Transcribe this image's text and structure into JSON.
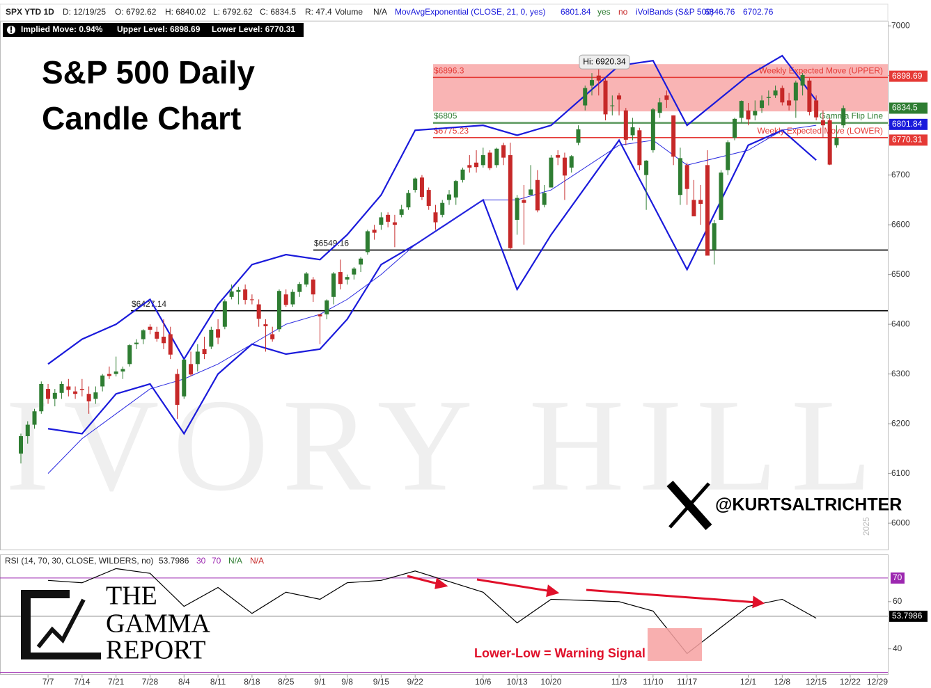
{
  "header": {
    "symbol": "SPX YTD 1D",
    "date": "D: 12/19/25",
    "open": "O: 6792.62",
    "high": "H: 6840.02",
    "low": "L: 6792.62",
    "close": "C: 6834.5",
    "range": "R: 47.4",
    "volume": "Volume",
    "volume_value": "N/A",
    "ema_study": "MovAvgExponential (CLOSE, 21, 0, yes)",
    "ema_value": "6801.84",
    "ema_yes": "yes",
    "ema_no": "no",
    "bands_study": "iVolBands (S&P 500)",
    "bands_upper": "6846.76",
    "bands_lower": "6702.76"
  },
  "implied_bar": {
    "implied": "Implied Move: 0.94%",
    "upper": "Upper Level: 6898.69",
    "lower": "Lower Level: 6770.31"
  },
  "chart_data": [
    {
      "type": "candlestick",
      "title_lines": [
        "S&P 500 Daily",
        "Candle Chart"
      ],
      "watermark": "IVORY HILL",
      "handle": "@KURTSALTRICHTER",
      "year_label": "2025",
      "categories": [
        null,
        null,
        null,
        null,
        "7/7",
        null,
        null,
        null,
        null,
        "7/14",
        null,
        null,
        null,
        null,
        "7/21",
        null,
        null,
        null,
        null,
        "7/28",
        null,
        null,
        null,
        null,
        "8/4",
        null,
        null,
        null,
        null,
        "8/11",
        null,
        null,
        null,
        null,
        "8/18",
        null,
        null,
        null,
        null,
        "8/25",
        null,
        null,
        null,
        null,
        "9/1",
        null,
        null,
        null,
        "9/8",
        null,
        null,
        null,
        null,
        "9/15",
        null,
        null,
        null,
        null,
        "9/22",
        null,
        null,
        null,
        null,
        null,
        null,
        null,
        null,
        null,
        "10/6",
        null,
        null,
        null,
        null,
        "10/13",
        null,
        null,
        null,
        null,
        "10/20",
        null,
        null,
        null,
        null,
        null,
        null,
        null,
        null,
        null,
        "11/3",
        null,
        null,
        null,
        null,
        "11/10",
        null,
        null,
        null,
        null,
        "11/17",
        null,
        null,
        null,
        null,
        null,
        null,
        null,
        null,
        "12/1",
        null,
        null,
        null,
        null,
        "12/8",
        null,
        null,
        null,
        null,
        "12/15",
        null,
        null,
        null,
        null,
        "12/22",
        null,
        null,
        null,
        "12/29"
      ],
      "ohlc": [
        [
          6140,
          6180,
          6120,
          6175
        ],
        [
          6175,
          6205,
          6160,
          6198
        ],
        [
          6198,
          6230,
          6190,
          6225
        ],
        [
          6225,
          6285,
          6220,
          6280
        ],
        [
          6270,
          6280,
          6240,
          6250
        ],
        [
          6250,
          6270,
          6235,
          6262
        ],
        [
          6262,
          6285,
          6250,
          6280
        ],
        [
          6275,
          6290,
          6255,
          6268
        ],
        [
          6265,
          6275,
          6250,
          6260
        ],
        [
          6270,
          6290,
          6255,
          6268
        ],
        [
          6260,
          6275,
          6220,
          6245
        ],
        [
          6250,
          6275,
          6240,
          6263
        ],
        [
          6275,
          6300,
          6265,
          6297
        ],
        [
          6300,
          6315,
          6290,
          6296
        ],
        [
          6300,
          6335,
          6295,
          6305
        ],
        [
          6305,
          6315,
          6290,
          6310
        ],
        [
          6320,
          6360,
          6315,
          6358
        ],
        [
          6360,
          6370,
          6350,
          6363
        ],
        [
          6370,
          6390,
          6360,
          6388
        ],
        [
          6395,
          6400,
          6380,
          6389
        ],
        [
          6385,
          6395,
          6365,
          6371
        ],
        [
          6375,
          6410,
          6350,
          6362
        ],
        [
          6380,
          6395,
          6330,
          6339
        ],
        [
          6300,
          6310,
          6210,
          6238
        ],
        [
          6255,
          6330,
          6250,
          6329
        ],
        [
          6320,
          6345,
          6295,
          6299
        ],
        [
          6320,
          6360,
          6305,
          6345
        ],
        [
          6350,
          6375,
          6330,
          6340
        ],
        [
          6355,
          6395,
          6350,
          6389
        ],
        [
          6390,
          6410,
          6360,
          6373
        ],
        [
          6395,
          6450,
          6390,
          6446
        ],
        [
          6455,
          6480,
          6450,
          6466
        ],
        [
          6465,
          6475,
          6440,
          6469
        ],
        [
          6470,
          6480,
          6440,
          6449
        ],
        [
          6450,
          6460,
          6440,
          6449
        ],
        [
          6440,
          6450,
          6395,
          6411
        ],
        [
          6400,
          6410,
          6345,
          6396
        ],
        [
          6380,
          6395,
          6365,
          6370
        ],
        [
          6390,
          6470,
          6385,
          6467
        ],
        [
          6460,
          6470,
          6435,
          6439
        ],
        [
          6440,
          6470,
          6435,
          6465
        ],
        [
          6465,
          6485,
          6455,
          6481
        ],
        [
          6480,
          6505,
          6475,
          6502
        ],
        [
          6490,
          6495,
          6445,
          6460
        ],
        [
          6420,
          6420,
          6360,
          6416
        ],
        [
          6420,
          6450,
          6410,
          6448
        ],
        [
          6455,
          6505,
          6440,
          6502
        ],
        [
          6505,
          6530,
          6470,
          6481
        ],
        [
          6490,
          6500,
          6480,
          6495
        ],
        [
          6500,
          6515,
          6490,
          6512
        ],
        [
          6520,
          6535,
          6505,
          6532
        ],
        [
          6545,
          6590,
          6540,
          6587
        ],
        [
          6590,
          6600,
          6570,
          6584
        ],
        [
          6600,
          6625,
          6590,
          6615
        ],
        [
          6620,
          6625,
          6595,
          6606
        ],
        [
          6605,
          6620,
          6555,
          6600
        ],
        [
          6620,
          6640,
          6615,
          6631
        ],
        [
          6635,
          6670,
          6630,
          6664
        ],
        [
          6670,
          6695,
          6665,
          6693
        ],
        [
          6695,
          6700,
          6650,
          6656
        ],
        [
          6670,
          6675,
          6630,
          6638
        ],
        [
          6625,
          6640,
          6590,
          6605
        ],
        [
          6620,
          6650,
          6615,
          6644
        ],
        [
          6650,
          6670,
          6640,
          6661
        ],
        [
          6655,
          6690,
          6640,
          6688
        ],
        [
          6690,
          6715,
          6685,
          6711
        ],
        [
          6720,
          6740,
          6705,
          6715
        ],
        [
          6725,
          6750,
          6705,
          6716
        ],
        [
          6720,
          6755,
          6715,
          6740
        ],
        [
          6745,
          6750,
          6710,
          6714
        ],
        [
          6720,
          6755,
          6715,
          6753
        ],
        [
          6760,
          6765,
          6720,
          6735
        ],
        [
          6740,
          6765,
          6550,
          6553
        ],
        [
          6610,
          6660,
          6580,
          6654
        ],
        [
          6650,
          6680,
          6560,
          6644
        ],
        [
          6660,
          6720,
          6660,
          6671
        ],
        [
          6690,
          6710,
          6625,
          6629
        ],
        [
          6640,
          6680,
          6635,
          6664
        ],
        [
          6675,
          6740,
          6675,
          6735
        ],
        [
          6740,
          6750,
          6720,
          6735
        ],
        [
          6735,
          6745,
          6650,
          6699
        ],
        [
          6715,
          6740,
          6705,
          6738
        ],
        [
          6765,
          6800,
          6760,
          6792
        ],
        [
          6840,
          6880,
          6830,
          6875
        ],
        [
          6880,
          6905,
          6860,
          6891
        ],
        [
          6900,
          6920,
          6860,
          6890
        ],
        [
          6890,
          6895,
          6810,
          6822
        ],
        [
          6840,
          6860,
          6820,
          6840
        ],
        [
          6860,
          6865,
          6820,
          6852
        ],
        [
          6830,
          6835,
          6760,
          6771
        ],
        [
          6780,
          6815,
          6770,
          6796
        ],
        [
          6790,
          6795,
          6710,
          6720
        ],
        [
          6700,
          6730,
          6630,
          6729
        ],
        [
          6750,
          6835,
          6745,
          6832
        ],
        [
          6825,
          6855,
          6815,
          6846
        ],
        [
          6860,
          6870,
          6835,
          6851
        ],
        [
          6820,
          6820,
          6720,
          6737
        ],
        [
          6660,
          6755,
          6640,
          6734
        ],
        [
          6720,
          6725,
          6640,
          6672
        ],
        [
          6650,
          6690,
          6630,
          6617
        ],
        [
          6650,
          6680,
          6600,
          6642
        ],
        [
          6720,
          6750,
          6540,
          6538
        ],
        [
          6550,
          6610,
          6520,
          6603
        ],
        [
          6610,
          6710,
          6610,
          6705
        ],
        [
          6710,
          6770,
          6700,
          6766
        ],
        [
          6775,
          6815,
          6770,
          6813
        ],
        [
          6815,
          6850,
          6805,
          6849
        ],
        [
          6830,
          6845,
          6800,
          6812
        ],
        [
          6820,
          6850,
          6810,
          6829
        ],
        [
          6835,
          6860,
          6825,
          6850
        ],
        [
          6855,
          6870,
          6840,
          6857
        ],
        [
          6860,
          6880,
          6855,
          6870
        ],
        [
          6875,
          6880,
          6840,
          6846
        ],
        [
          6850,
          6865,
          6830,
          6840
        ],
        [
          6850,
          6890,
          6815,
          6886
        ],
        [
          6880,
          6905,
          6860,
          6901
        ],
        [
          6890,
          6895,
          6820,
          6827
        ],
        [
          6850,
          6860,
          6810,
          6816
        ],
        [
          6810,
          6830,
          6775,
          6800
        ],
        [
          6810,
          6815,
          6720,
          6721
        ],
        [
          6760,
          6800,
          6755,
          6775
        ],
        [
          6800,
          6840,
          6795,
          6834.5
        ],
        null,
        null,
        null,
        null,
        null
      ],
      "up_color": "#2e7d32",
      "down_color": "#c62828",
      "series": [
        {
          "color": "#1a1adb",
          "width": 2.2,
          "x": [
            "7/7",
            "7/14",
            "7/21",
            "7/28",
            "8/4",
            "8/11",
            "8/18",
            "8/25",
            "9/1",
            "9/8",
            "9/15",
            "9/22",
            "10/6",
            "10/13",
            "10/20",
            "11/3",
            "11/10",
            "11/17",
            "12/1",
            "12/8",
            "12/15"
          ],
          "values": [
            6320,
            6370,
            6400,
            6450,
            6330,
            6440,
            6520,
            6540,
            6530,
            6580,
            6660,
            6790,
            6800,
            6780,
            6800,
            6920,
            6930,
            6800,
            6900,
            6940,
            6850
          ]
        },
        {
          "color": "#1a1adb",
          "width": 2.2,
          "x": [
            "7/7",
            "7/14",
            "7/21",
            "7/28",
            "8/4",
            "8/11",
            "8/18",
            "8/25",
            "9/1",
            "9/8",
            "9/15",
            "9/22",
            "10/6",
            "10/13",
            "10/20",
            "11/3",
            "11/10",
            "11/17",
            "12/1",
            "12/8",
            "12/15"
          ],
          "values": [
            6190,
            6180,
            6260,
            6280,
            6180,
            6300,
            6360,
            6340,
            6350,
            6410,
            6520,
            6560,
            6650,
            6470,
            6580,
            6770,
            6640,
            6510,
            6760,
            6790,
            6730
          ]
        },
        {
          "color": "#2a2ae0",
          "width": 1,
          "x": [
            "7/7",
            "7/14",
            "7/21",
            "7/28",
            "8/4",
            "8/11",
            "8/18",
            "8/25",
            "9/1",
            "9/8",
            "9/15",
            "9/22",
            "10/6",
            "10/13",
            "10/20",
            "11/3",
            "11/10",
            "11/17",
            "12/1",
            "12/8",
            "12/15"
          ],
          "values": [
            6100,
            6170,
            6220,
            6270,
            6290,
            6320,
            6360,
            6400,
            6420,
            6450,
            6500,
            6560,
            6650,
            6650,
            6670,
            6760,
            6770,
            6720,
            6750,
            6790,
            6800
          ]
        }
      ],
      "zone": {
        "values": [
          6828,
          6923
        ],
        "color": "#f7a1a1"
      },
      "levels": [
        {
          "value": 6896.3,
          "label": "$6896.3",
          "note": "Weekly Expected Move (UPPER)",
          "color": "#e53935"
        },
        {
          "value": 6805,
          "label": "$6805",
          "note": "Gamma Flip Line",
          "color": "#2e7d32"
        },
        {
          "value": 6775.23,
          "label": "$6775.23",
          "note": "Weekly Expected Move (LOWER)",
          "color": "#e53935"
        },
        {
          "value": 6549.16,
          "label": "$6549.16",
          "color": "#000000"
        },
        {
          "value": 6427.14,
          "label": "$6427.14",
          "color": "#000000"
        }
      ],
      "high_note": {
        "value": 6920.34,
        "label": "Hi: 6920.34"
      },
      "price_tags": [
        {
          "value": 6898.69,
          "color": "#e53935"
        },
        {
          "value": 6834.5,
          "color": "#2e7d32"
        },
        {
          "value": 6801.84,
          "color": "#1a1adb"
        },
        {
          "value": 6770.31,
          "color": "#e53935"
        }
      ],
      "ylim": [
        5947,
        7010
      ],
      "yticks": [
        6000,
        6100,
        6200,
        6300,
        6400,
        6500,
        6600,
        6700,
        6800,
        6900,
        7000
      ]
    },
    {
      "type": "line",
      "title": "RSI (14, 70, 30, CLOSE, WILDERS, no)",
      "current": 53.7986,
      "overbought": 70,
      "oversold": 30,
      "status": [
        "N/A",
        "N/A"
      ],
      "color": "#000000",
      "x": [
        "7/7",
        "7/14",
        "7/21",
        "7/28",
        "8/4",
        "8/11",
        "8/18",
        "8/25",
        "9/1",
        "9/8",
        "9/15",
        "9/22",
        "10/6",
        "10/13",
        "10/20",
        "11/3",
        "11/10",
        "11/17",
        "12/1",
        "12/8",
        "12/15"
      ],
      "values": [
        69,
        68,
        74,
        72,
        58,
        66,
        55,
        64,
        61,
        68,
        69,
        73,
        64,
        51,
        61,
        60,
        56,
        38,
        58,
        61,
        53
      ],
      "ylim": [
        29,
        80
      ],
      "yticks": [
        40,
        60,
        70
      ],
      "annotation": "Lower-Low = Warning Signal"
    }
  ],
  "logo": {
    "line1": "THE",
    "line2": "GAMMA",
    "line3": "REPORT"
  }
}
